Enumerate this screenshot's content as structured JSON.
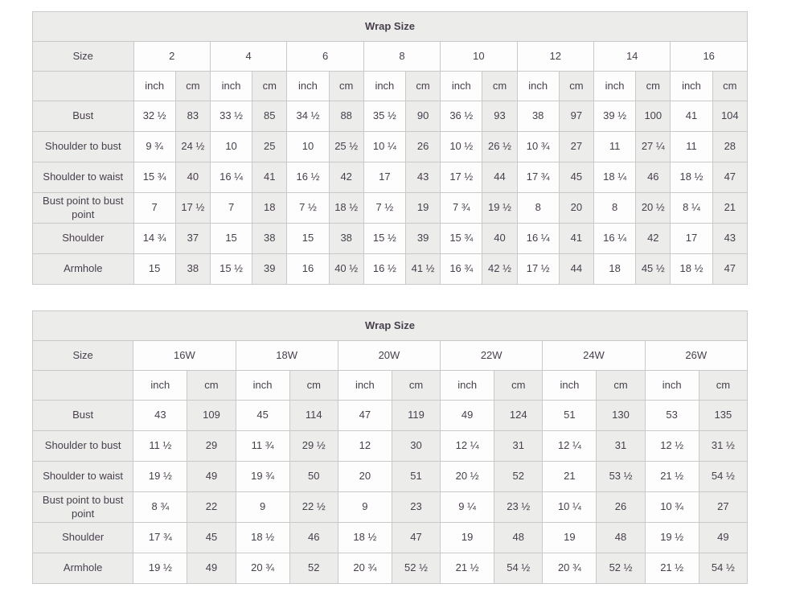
{
  "page": {
    "background_color": "#ffffff",
    "table_border_color": "#c9c9c9",
    "shaded_cell_color": "#ececeb",
    "text_color": "#483f4c"
  },
  "chart_data": [
    {
      "type": "table",
      "title": "Wrap Size",
      "corner_label": "Size",
      "unit_labels": [
        "inch",
        "cm"
      ],
      "sizes": [
        "2",
        "4",
        "6",
        "8",
        "10",
        "12",
        "14",
        "16"
      ],
      "measurements": [
        {
          "label": "Bust",
          "values": [
            "32 ½",
            "83",
            "33 ½",
            "85",
            "34 ½",
            "88",
            "35 ½",
            "90",
            "36 ½",
            "93",
            "38",
            "97",
            "39 ½",
            "100",
            "41",
            "104"
          ]
        },
        {
          "label": "Shoulder to bust",
          "values": [
            "9 ¾",
            "24 ½",
            "10",
            "25",
            "10",
            "25 ½",
            "10 ¼",
            "26",
            "10 ½",
            "26 ½",
            "10 ¾",
            "27",
            "11",
            "27 ¼",
            "11",
            "28"
          ]
        },
        {
          "label": "Shoulder to waist",
          "values": [
            "15 ¾",
            "40",
            "16 ¼",
            "41",
            "16 ½",
            "42",
            "17",
            "43",
            "17 ½",
            "44",
            "17 ¾",
            "45",
            "18 ¼",
            "46",
            "18 ½",
            "47"
          ]
        },
        {
          "label": "Bust point to bust point",
          "values": [
            "7",
            "17 ½",
            "7",
            "18",
            "7 ½",
            "18 ½",
            "7 ½",
            "19",
            "7 ¾",
            "19 ½",
            "8",
            "20",
            "8",
            "20 ½",
            "8 ¼",
            "21"
          ]
        },
        {
          "label": "Shoulder",
          "values": [
            "14 ¾",
            "37",
            "15",
            "38",
            "15",
            "38",
            "15 ½",
            "39",
            "15 ¾",
            "40",
            "16 ¼",
            "41",
            "16 ¼",
            "42",
            "17",
            "43"
          ]
        },
        {
          "label": "Armhole",
          "values": [
            "15",
            "38",
            "15 ½",
            "39",
            "16",
            "40 ½",
            "16 ½",
            "41 ½",
            "16 ¾",
            "42 ½",
            "17 ½",
            "44",
            "18",
            "45 ½",
            "18 ½",
            "47"
          ]
        }
      ]
    },
    {
      "type": "table",
      "title": "Wrap Size",
      "corner_label": "Size",
      "unit_labels": [
        "inch",
        "cm"
      ],
      "sizes": [
        "16W",
        "18W",
        "20W",
        "22W",
        "24W",
        "26W"
      ],
      "measurements": [
        {
          "label": "Bust",
          "values": [
            "43",
            "109",
            "45",
            "114",
            "47",
            "119",
            "49",
            "124",
            "51",
            "130",
            "53",
            "135"
          ]
        },
        {
          "label": "Shoulder to bust",
          "values": [
            "11 ½",
            "29",
            "11 ¾",
            "29 ½",
            "12",
            "30",
            "12 ¼",
            "31",
            "12 ¼",
            "31",
            "12 ½",
            "31 ½"
          ]
        },
        {
          "label": "Shoulder to waist",
          "values": [
            "19 ½",
            "49",
            "19 ¾",
            "50",
            "20",
            "51",
            "20 ½",
            "52",
            "21",
            "53 ½",
            "21 ½",
            "54 ½"
          ]
        },
        {
          "label": "Bust point to bust point",
          "values": [
            "8 ¾",
            "22",
            "9",
            "22 ½",
            "9",
            "23",
            "9 ¼",
            "23 ½",
            "10 ¼",
            "26",
            "10 ¾",
            "27"
          ]
        },
        {
          "label": "Shoulder",
          "values": [
            "17 ¾",
            "45",
            "18 ½",
            "46",
            "18 ½",
            "47",
            "19",
            "48",
            "19",
            "48",
            "19 ½",
            "49"
          ]
        },
        {
          "label": "Armhole",
          "values": [
            "19 ½",
            "49",
            "20 ¾",
            "52",
            "20 ¾",
            "52 ½",
            "21 ½",
            "54 ½",
            "20 ¾",
            "52 ½",
            "21 ½",
            "54 ½"
          ]
        }
      ]
    }
  ]
}
